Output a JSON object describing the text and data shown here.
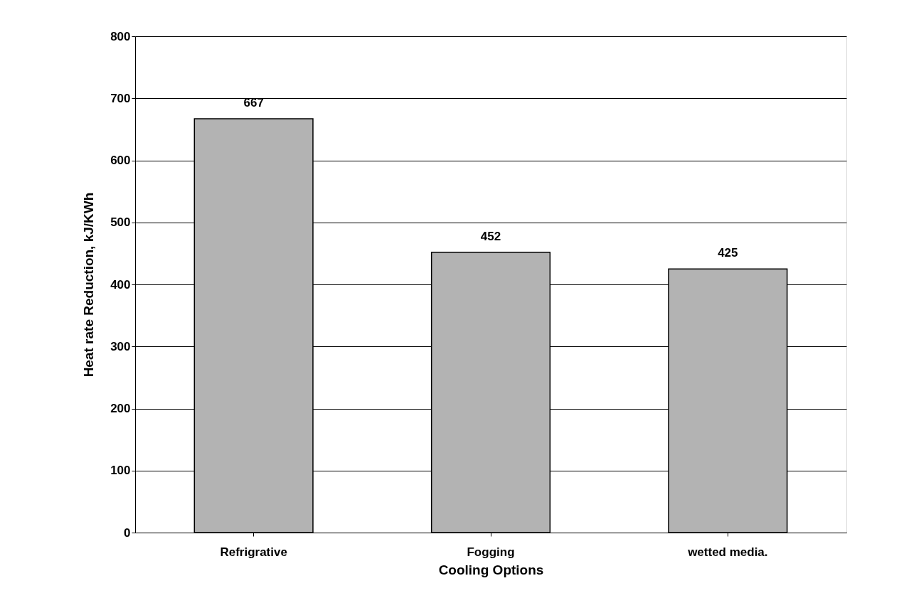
{
  "chart_data": {
    "type": "bar",
    "xlabel": "Cooling Options",
    "ylabel": "Heat rate Reduction, kJ/KWh",
    "categories": [
      "Refrigrative",
      "Fogging",
      "wetted media."
    ],
    "values": [
      667,
      452,
      425
    ],
    "color": "#b3b3b3",
    "ylim": [
      0,
      800
    ],
    "yticks": [
      0,
      100,
      200,
      300,
      400,
      500,
      600,
      700,
      800
    ],
    "grid": "y",
    "data_labels": true
  }
}
